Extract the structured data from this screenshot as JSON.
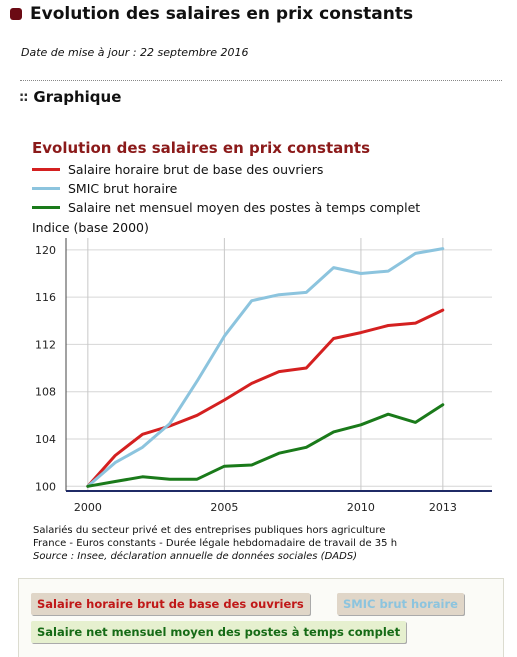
{
  "page": {
    "title": "Evolution des salaires en prix constants",
    "update_date": "Date de mise à jour : 22 septembre 2016",
    "section_heading": "Graphique",
    "section_icon": "dots-icon",
    "bullet_color": "#6b0a14"
  },
  "chart_data": {
    "type": "line",
    "title": "Evolution des salaires en prix constants",
    "ylabel": "Indice (base 2000)",
    "xlabel": "",
    "x": [
      2000,
      2001,
      2002,
      2003,
      2004,
      2005,
      2006,
      2007,
      2008,
      2009,
      2010,
      2011,
      2012,
      2013
    ],
    "xlim": [
      1999.2,
      2014.8
    ],
    "ylim": [
      99.6,
      121
    ],
    "x_ticks": [
      2000,
      2005,
      2010,
      2013
    ],
    "y_ticks": [
      100,
      104,
      108,
      112,
      116,
      120
    ],
    "grid": true,
    "legend_position": "top-left",
    "series": [
      {
        "name": "Salaire horaire brut de base des ouvriers",
        "color": "#d42020",
        "values": [
          100,
          102.6,
          104.4,
          105.1,
          106.0,
          107.3,
          108.7,
          109.7,
          110.0,
          112.5,
          113.0,
          113.6,
          113.8,
          114.9
        ]
      },
      {
        "name": "SMIC brut horaire",
        "color": "#8cc4de",
        "values": [
          100,
          102.0,
          103.3,
          105.3,
          108.9,
          112.7,
          115.7,
          116.2,
          116.4,
          118.5,
          118.0,
          118.2,
          119.7,
          120.1
        ]
      },
      {
        "name": "Salaire net mensuel moyen des postes à temps complet",
        "color": "#1a7a1a",
        "values": [
          100,
          100.4,
          100.8,
          100.6,
          100.6,
          101.7,
          101.8,
          102.8,
          103.3,
          104.6,
          105.2,
          106.1,
          105.4,
          106.9
        ]
      }
    ]
  },
  "notes": {
    "line1": "Salariés du secteur privé et des entreprises publiques hors agriculture",
    "line2": "France - Euros constants - Durée légale hebdomadaire de travail de 35 h",
    "line3": "Source : Insee, déclaration annuelle de données sociales (DADS)"
  },
  "buttons": {
    "red_label": "Salaire horaire brut de base des ouvriers",
    "blue_label": "SMIC brut horaire",
    "green_label": "Salaire net mensuel moyen des postes à temps complet"
  }
}
